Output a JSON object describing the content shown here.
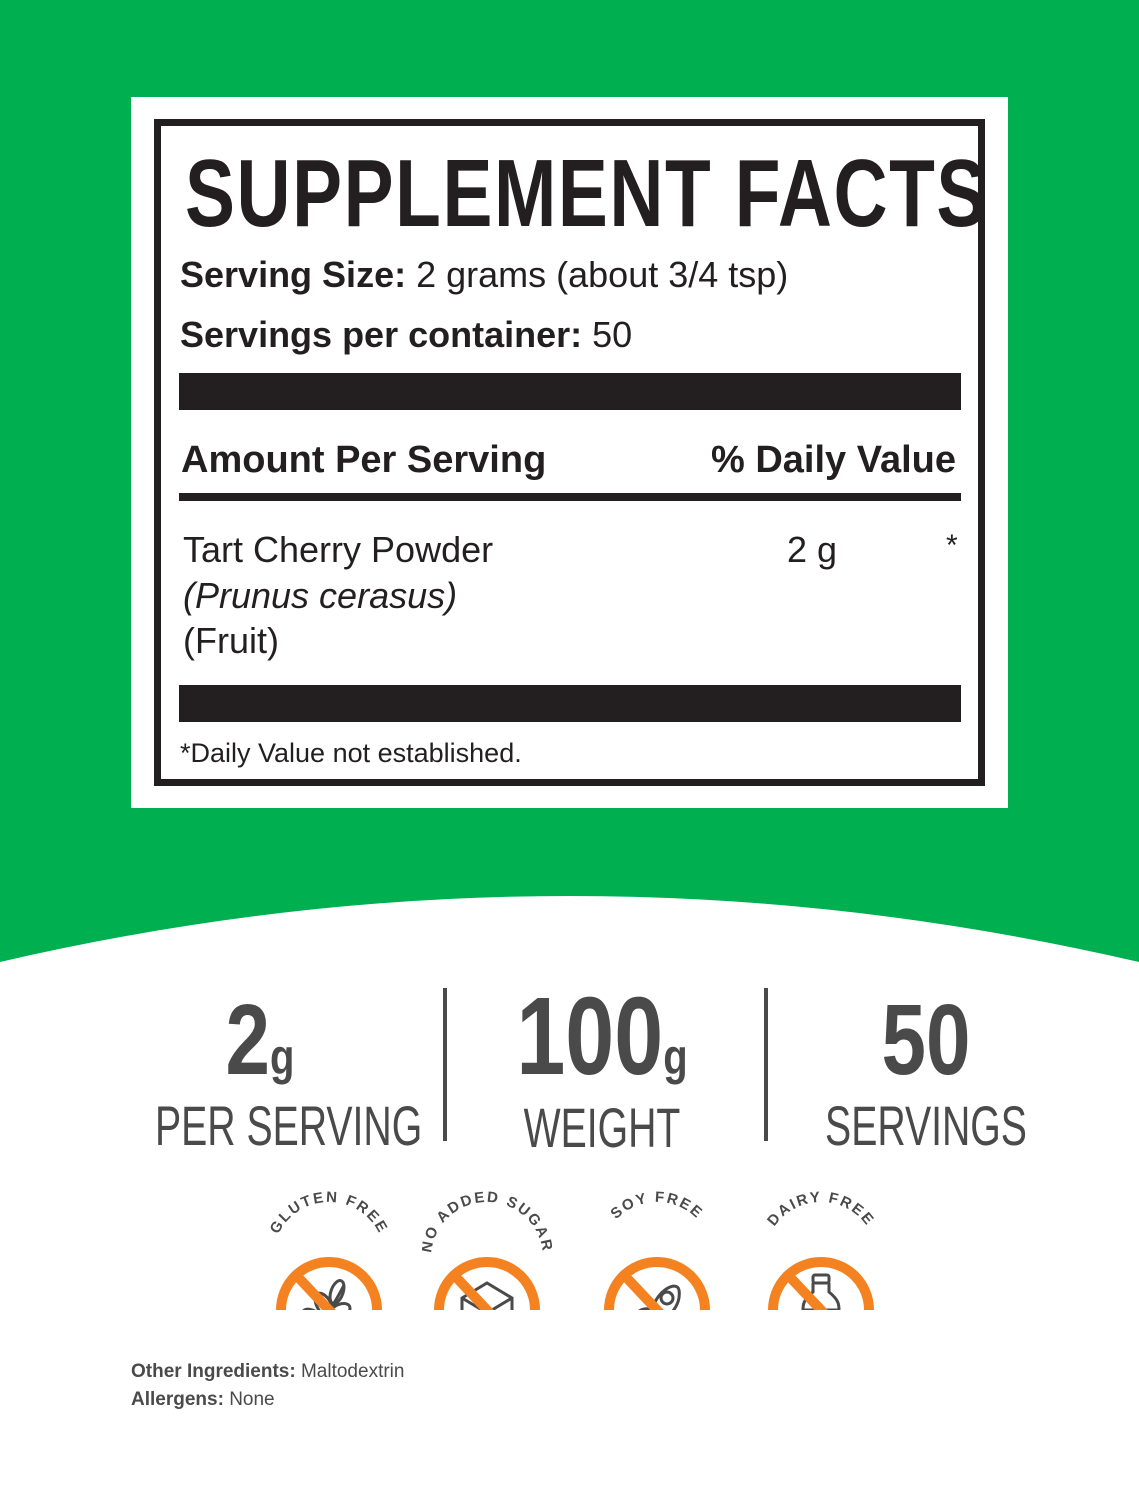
{
  "facts": {
    "title": "SUPPLEMENT FACTS",
    "serving_size_label": "Serving Size:",
    "serving_size_value": "2 grams (about 3/4 tsp)",
    "servings_label": "Servings per container:",
    "servings_value": "50",
    "col_amount": "Amount Per Serving",
    "col_dv": "% Daily Value",
    "ingredient": {
      "name": "Tart Cherry Powder",
      "latin": "(Prunus cerasus)",
      "part": "(Fruit)",
      "amount": "2 g",
      "dv": "*"
    },
    "footnote": "*Daily Value not established."
  },
  "stats": [
    {
      "value": "2",
      "unit": "g",
      "label": "PER SERVING"
    },
    {
      "value": "100",
      "unit": "g",
      "label": "WEIGHT"
    },
    {
      "value": "50",
      "unit": "",
      "label": "SERVINGS"
    }
  ],
  "badges": [
    {
      "label": "GLUTEN FREE",
      "icon": "wheat-icon"
    },
    {
      "label": "NO ADDED SUGAR",
      "icon": "sugar-cube-icon"
    },
    {
      "label": "SOY FREE",
      "icon": "soybean-icon"
    },
    {
      "label": "DAIRY FREE",
      "icon": "milk-bottle-icon"
    }
  ],
  "footer": {
    "other_label": "Other Ingredients:",
    "other_value": "Maltodextrin",
    "allergens_label": "Allergens:",
    "allergens_value": "None"
  },
  "colors": {
    "green": "#00b050",
    "orange": "#f58220",
    "text": "#231f20",
    "gray": "#4a4a4a"
  }
}
